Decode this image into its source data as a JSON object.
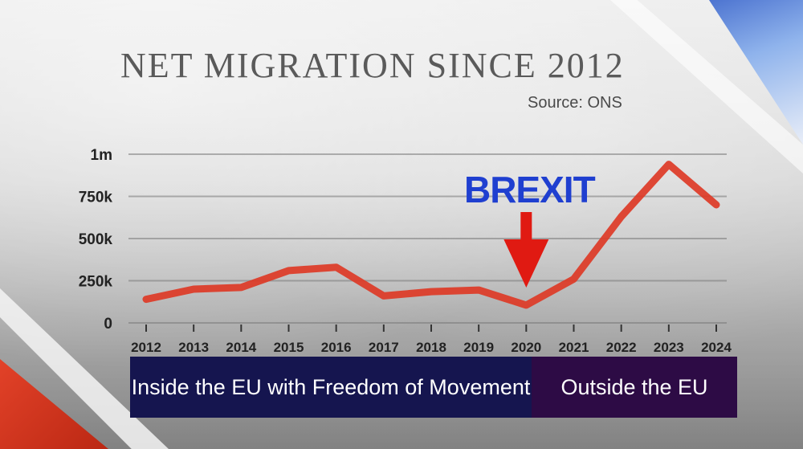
{
  "title": "NET MIGRATION SINCE 2012",
  "source": "Source: ONS",
  "annotation": "BREXIT",
  "bands": {
    "inside": "Inside the EU with Freedom of Movement",
    "outside": "Outside the EU"
  },
  "colors": {
    "line": "#dd3a26",
    "annotation_text": "#1f3fd0",
    "arrow": "#e01a12",
    "band_inside": "#15154f",
    "band_outside": "#2d0b45"
  },
  "chart_data": {
    "type": "line",
    "title": "NET MIGRATION SINCE 2012",
    "xlabel": "",
    "ylabel": "",
    "x": [
      "2012",
      "2013",
      "2014",
      "2015",
      "2016",
      "2017",
      "2018",
      "2019",
      "2020",
      "2021",
      "2022",
      "2023",
      "2024"
    ],
    "x_tick_labels": [
      "2012",
      "2013",
      "2014",
      "2015",
      "2016",
      "2017",
      "2018",
      "2019",
      "2020",
      "2021",
      "2022",
      "2023",
      "2024"
    ],
    "y_ticks": [
      0,
      250000,
      500000,
      750000,
      1000000
    ],
    "y_tick_labels": [
      "0",
      "250k",
      "500k",
      "750k",
      "1m"
    ],
    "ylim": [
      0,
      1000000
    ],
    "grid": true,
    "series": [
      {
        "points": [
          {
            "x": "2012",
            "y": 140000
          },
          {
            "x": "2013",
            "y": 200000
          },
          {
            "x": "2014",
            "y": 210000
          },
          {
            "x": "2015",
            "y": 310000
          },
          {
            "x": "2016",
            "y": 330000
          },
          {
            "x": "2017",
            "y": 160000
          },
          {
            "x": "2018",
            "y": 185000
          },
          {
            "x": "2019",
            "y": 195000
          },
          {
            "x": "2020",
            "y": 105000
          },
          {
            "x": "2021",
            "y": 260000
          },
          {
            "x": "2022",
            "y": 630000
          },
          {
            "x": "2023",
            "y": 940000
          },
          {
            "x": "2024",
            "y": 700000
          }
        ]
      }
    ],
    "annotations": [
      {
        "text": "BREXIT",
        "x": "2020",
        "marker": "arrow"
      }
    ]
  }
}
